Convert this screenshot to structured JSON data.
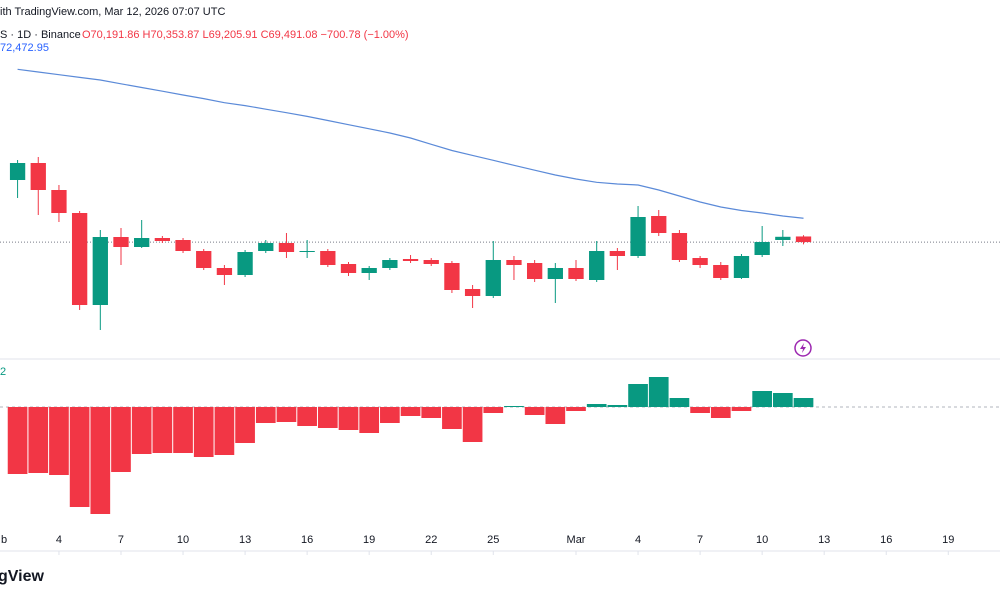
{
  "chart_data": {
    "type": "candlestick",
    "header": "ith TradingView.com, Mar 12, 2026 07:07 UTC",
    "symbol": "S · 1D · Binance",
    "ohlc_text": "O70,191.86 H70,353.87 L69,205.91 C69,491.08 −700.78 (−1.00%)",
    "brand": "gView",
    "x": [
      2,
      3,
      4,
      5,
      6,
      7,
      8,
      9,
      10,
      11,
      12,
      13,
      14,
      15,
      16,
      17,
      18,
      19,
      20,
      21,
      22,
      23,
      24,
      25,
      26,
      27,
      28,
      29,
      30,
      31,
      32,
      33,
      34,
      35,
      36,
      37,
      38,
      39,
      40
    ],
    "open": [
      77250,
      79375,
      76000,
      73125,
      61625,
      70125,
      68875,
      70000,
      69750,
      68375,
      66250,
      65375,
      68375,
      69375,
      68250,
      68375,
      66750,
      65625,
      66250,
      67375,
      67250,
      66875,
      63625,
      62750,
      67250,
      66875,
      64875,
      66250,
      64750,
      68375,
      67750,
      72750,
      70625,
      67500,
      66625,
      65000,
      67875,
      69750,
      70191.86
    ],
    "high": [
      79750,
      80125,
      76625,
      73375,
      71000,
      71250,
      72250,
      70250,
      70000,
      68625,
      66625,
      68500,
      69750,
      70625,
      69750,
      68625,
      67000,
      66500,
      67500,
      67875,
      67500,
      67125,
      64125,
      69625,
      67750,
      67250,
      66875,
      67250,
      69625,
      68750,
      74000,
      73500,
      71000,
      67750,
      67000,
      68000,
      71500,
      71000,
      70353.87
    ],
    "low": [
      75000,
      72875,
      72000,
      61000,
      58500,
      66625,
      68750,
      69375,
      68125,
      66000,
      64125,
      65125,
      68125,
      67500,
      67500,
      66375,
      65250,
      64750,
      66000,
      66875,
      66500,
      63125,
      61250,
      62500,
      64750,
      64500,
      61875,
      64625,
      64500,
      66000,
      67500,
      70250,
      67000,
      66250,
      64750,
      64875,
      67625,
      69000,
      69205.91
    ],
    "close": [
      79375,
      76000,
      73125,
      61625,
      70125,
      68875,
      70000,
      69625,
      68375,
      66250,
      65375,
      68250,
      69375,
      68250,
      68375,
      66625,
      65625,
      66250,
      67250,
      67125,
      66750,
      63500,
      62750,
      67250,
      66625,
      64875,
      66250,
      64875,
      68375,
      67750,
      72625,
      70625,
      67250,
      66625,
      65000,
      67750,
      69500,
      70150,
      69491.08
    ],
    "xlim": [
      1.15,
      49.5
    ],
    "ylim": [
      55000,
      96000
    ],
    "xticks": [
      {
        "value": 1,
        "label": "b"
      },
      4,
      7,
      10,
      13,
      16,
      19,
      22,
      25,
      {
        "value": 29,
        "label": "Mar"
      },
      {
        "value": 32,
        "label": "4"
      },
      {
        "value": 35,
        "label": "7"
      },
      {
        "value": 38,
        "label": "10"
      },
      {
        "value": 41,
        "label": "13"
      },
      {
        "value": 44,
        "label": "16"
      },
      {
        "value": 47,
        "label": "19"
      }
    ],
    "up_color": "#089981",
    "down_color": "#f23645",
    "ma": {
      "color": "#5b8ad8",
      "label": "72,472.95",
      "values": [
        91088,
        90750,
        90413,
        90075,
        89750,
        89275,
        88813,
        88350,
        87875,
        87425,
        86913,
        86550,
        86100,
        85663,
        85200,
        84688,
        84163,
        83650,
        83125,
        82500,
        81713,
        80938,
        80325,
        79713,
        79088,
        78475,
        77875,
        77375,
        76963,
        76750,
        76625,
        76000,
        75250,
        74500,
        73875,
        73438,
        73125,
        72750,
        72472.95
      ]
    },
    "histogram": {
      "label": "2",
      "ylim": [
        -123,
        47
      ],
      "values": [
        -67,
        -66,
        -68,
        -100,
        -107,
        -65,
        -47,
        -46,
        -46,
        -50,
        -48,
        -36,
        -16,
        -15,
        -19,
        -21,
        -23,
        -26,
        -16,
        -9,
        -11,
        -22,
        -35,
        -6,
        1,
        -8,
        -17,
        -4,
        3,
        2,
        23,
        30,
        9,
        -6,
        -11,
        -4,
        16,
        14,
        9
      ]
    }
  }
}
